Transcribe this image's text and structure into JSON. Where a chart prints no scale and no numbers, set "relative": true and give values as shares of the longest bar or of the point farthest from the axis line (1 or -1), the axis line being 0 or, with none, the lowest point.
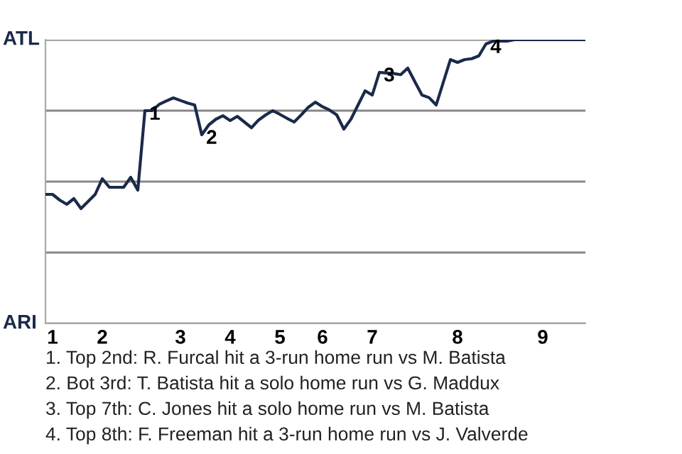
{
  "chart_data": {
    "type": "line",
    "categories": [
      null,
      "1",
      null,
      null,
      null,
      null,
      null,
      null,
      "2",
      null,
      null,
      null,
      null,
      null,
      null,
      null,
      null,
      null,
      null,
      "3",
      null,
      null,
      null,
      null,
      null,
      null,
      "4",
      null,
      null,
      null,
      null,
      null,
      null,
      "5",
      null,
      null,
      null,
      null,
      null,
      "6",
      null,
      null,
      null,
      null,
      null,
      null,
      "7",
      null,
      null,
      null,
      null,
      null,
      null,
      null,
      null,
      null,
      null,
      null,
      "8",
      null,
      null,
      null,
      null,
      null,
      null,
      null,
      null,
      null,
      null,
      null,
      "9",
      null,
      null,
      null,
      null,
      null,
      null
    ],
    "relative": true,
    "series": [
      {
        "color": "#1b2a4a",
        "values": [
          0.455,
          0.455,
          0.435,
          0.42,
          0.44,
          0.405,
          0.43,
          0.455,
          0.51,
          0.48,
          0.48,
          0.48,
          0.515,
          0.47,
          0.75,
          0.75,
          0.772,
          0.784,
          0.795,
          0.786,
          0.777,
          0.77,
          0.665,
          0.7,
          0.72,
          0.732,
          0.715,
          0.73,
          0.71,
          0.69,
          0.717,
          0.735,
          0.75,
          0.737,
          0.723,
          0.71,
          0.735,
          0.762,
          0.78,
          0.764,
          0.752,
          0.735,
          0.685,
          0.72,
          0.77,
          0.82,
          0.805,
          0.885,
          0.883,
          0.881,
          0.877,
          0.9,
          0.852,
          0.805,
          0.796,
          0.77,
          0.85,
          0.93,
          0.92,
          0.93,
          0.933,
          0.943,
          0.985,
          0.995,
          0.995,
          0.995,
          1,
          1,
          1,
          1,
          1,
          1,
          1,
          1,
          1,
          1,
          1
        ]
      }
    ],
    "grid": "y",
    "marker": "none",
    "annotations": [
      "ATL",
      "ARI",
      {
        "text": "1",
        "y": 0.75
      },
      {
        "text": "2",
        "y": 0.665
      },
      {
        "text": "3",
        "y": 0.885
      },
      {
        "text": "4",
        "y": 0.985
      },
      "1. Top 2nd: R. Furcal hit a 3-run home run vs M. Batista",
      "2. Bot 3rd: T. Batista hit a solo home run vs G. Maddux",
      "3. Top 7th: C. Jones hit a solo home run vs M. Batista",
      "4. Top 8th: F. Freeman hit a 3-run home run vs J. Valverde"
    ]
  }
}
